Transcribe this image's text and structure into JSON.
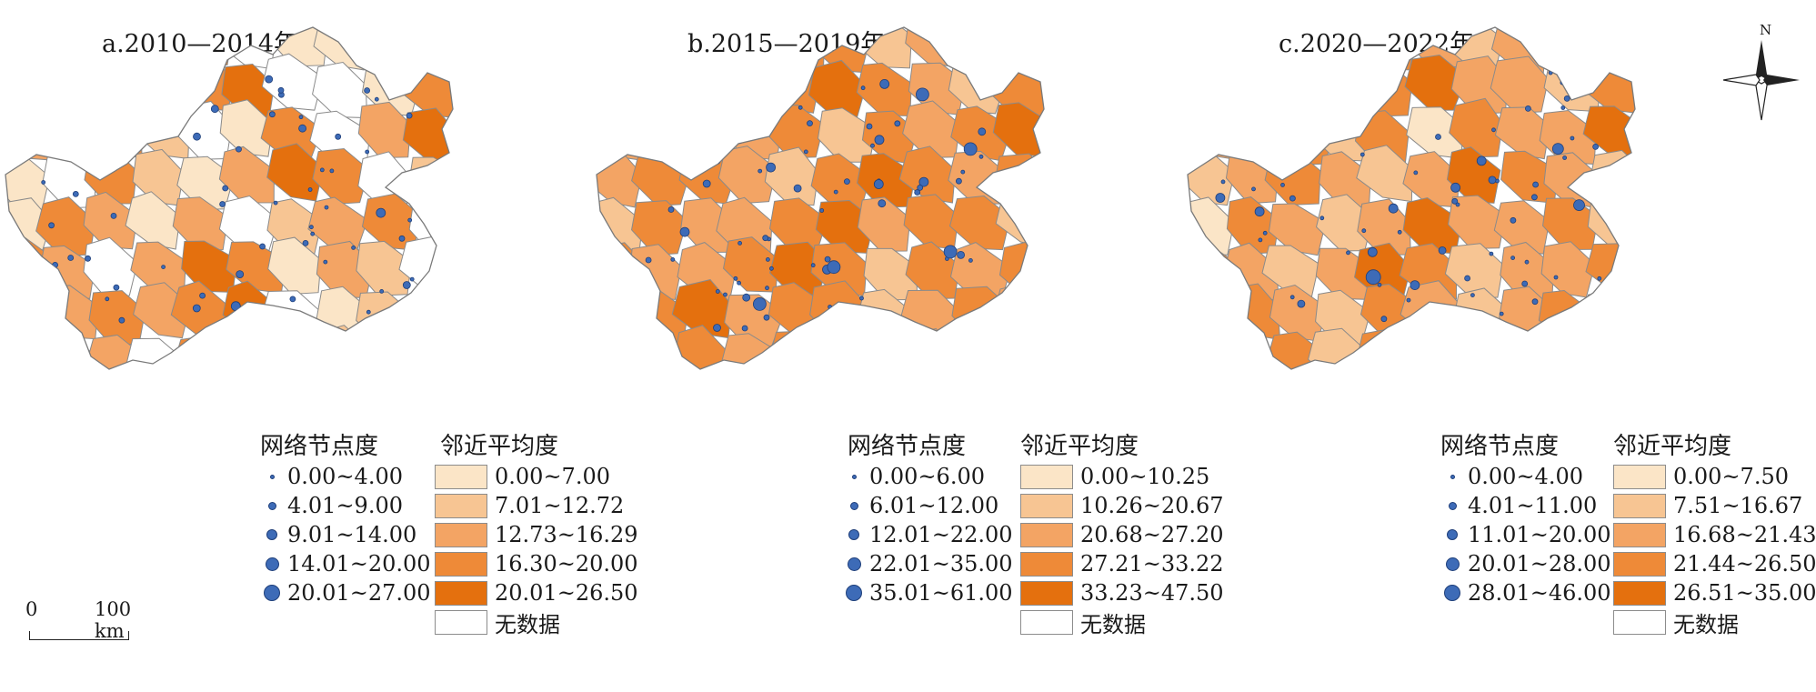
{
  "panels": [
    {
      "title": "a.2010—2014年",
      "legend_node_title": "网络节点度",
      "legend_fill_title": "邻近平均度",
      "node_classes": [
        "0.00~4.00",
        "4.01~9.00",
        "9.01~14.00",
        "14.01~20.00",
        "20.01~27.00"
      ],
      "fill_classes": [
        "0.00~7.00",
        "7.01~12.72",
        "12.73~16.29",
        "16.30~20.00",
        "20.01~26.50"
      ],
      "no_data": "无数据"
    },
    {
      "title": "b.2015—2019年",
      "legend_node_title": "网络节点度",
      "legend_fill_title": "邻近平均度",
      "node_classes": [
        "0.00~6.00",
        "6.01~12.00",
        "12.01~22.00",
        "22.01~35.00",
        "35.01~61.00"
      ],
      "fill_classes": [
        "0.00~10.25",
        "10.26~20.67",
        "20.68~27.20",
        "27.21~33.22",
        "33.23~47.50"
      ],
      "no_data": "无数据"
    },
    {
      "title": "c.2020—2022年",
      "legend_node_title": "网络节点度",
      "legend_fill_title": "邻近平均度",
      "node_classes": [
        "0.00~4.00",
        "4.01~11.00",
        "11.01~20.00",
        "20.01~28.00",
        "28.01~46.00"
      ],
      "fill_classes": [
        "0.00~7.50",
        "7.51~16.67",
        "16.68~21.43",
        "21.44~26.50",
        "26.51~35.00"
      ],
      "no_data": "无数据"
    }
  ],
  "scale_bar": {
    "zero": "0",
    "distance": "100 km"
  },
  "north_arrow": {
    "label": "N"
  },
  "colors": {
    "fill_classes": [
      "#fbe5c7",
      "#f7c593",
      "#f3a464",
      "#ee8a38",
      "#e4700e"
    ],
    "no_data": "#ffffff",
    "node": "#3d6bb7",
    "node_outline": "#1f3f7a"
  }
}
